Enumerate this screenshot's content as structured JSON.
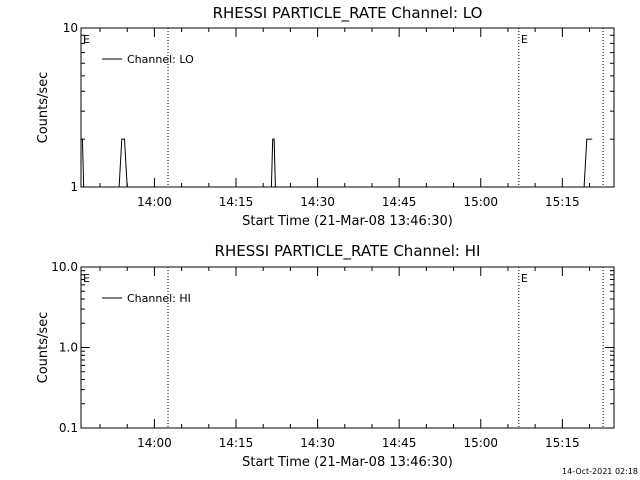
{
  "footer": {
    "timestamp": "14-Oct-2021 02:18"
  },
  "chart_data": [
    {
      "type": "line",
      "title": "RHESSI PARTICLE_RATE Channel: LO",
      "xlabel": "Start Time (21-Mar-08 13:46:30)",
      "ylabel": "Counts/sec",
      "yscale": "log",
      "ylim": [
        1,
        10
      ],
      "yticks": [
        {
          "v": 1,
          "label": "1"
        },
        {
          "v": 10,
          "label": "10"
        }
      ],
      "xlim": [
        "13:46:30",
        "15:24:30"
      ],
      "xticks": [
        "14:00",
        "14:15",
        "14:30",
        "14:45",
        "15:00",
        "15:15"
      ],
      "grid": false,
      "legend_position": "top-left",
      "series": [
        {
          "name": "Channel: LO",
          "points": [
            [
              "13:46:30",
              2
            ],
            [
              "13:46:45",
              2
            ],
            [
              "13:47:00",
              1
            ],
            [
              "13:53:30",
              1
            ],
            [
              "13:54:00",
              2
            ],
            [
              "13:54:30",
              2
            ],
            [
              "13:55:00",
              1
            ],
            [
              "14:21:30",
              1
            ],
            [
              "14:21:45",
              2
            ],
            [
              "14:22:00",
              2
            ],
            [
              "14:22:15",
              1
            ],
            [
              "15:19:00",
              1
            ],
            [
              "15:19:30",
              2
            ],
            [
              "15:20:30",
              2
            ]
          ]
        }
      ],
      "vlines": [
        "14:02:30",
        "15:07:00",
        "15:22:30"
      ],
      "markers": [
        {
          "x": "13:46:30",
          "text": "E"
        },
        {
          "x": "15:07:00",
          "text": "E"
        }
      ]
    },
    {
      "type": "line",
      "title": "RHESSI PARTICLE_RATE Channel: HI",
      "xlabel": "Start Time (21-Mar-08 13:46:30)",
      "ylabel": "Counts/sec",
      "yscale": "log",
      "ylim": [
        0.1,
        10
      ],
      "yticks": [
        {
          "v": 0.1,
          "label": "0.1"
        },
        {
          "v": 1,
          "label": "1.0"
        },
        {
          "v": 10,
          "label": "10.0"
        }
      ],
      "xlim": [
        "13:46:30",
        "15:24:30"
      ],
      "xticks": [
        "14:00",
        "14:15",
        "14:30",
        "14:45",
        "15:00",
        "15:15"
      ],
      "grid": false,
      "legend_position": "top-left",
      "series": [
        {
          "name": "Channel: HI",
          "points": []
        }
      ],
      "vlines": [
        "14:02:30",
        "15:07:00",
        "15:22:30"
      ],
      "markers": [
        {
          "x": "13:46:30",
          "text": "E"
        },
        {
          "x": "15:07:00",
          "text": "E"
        }
      ]
    }
  ]
}
